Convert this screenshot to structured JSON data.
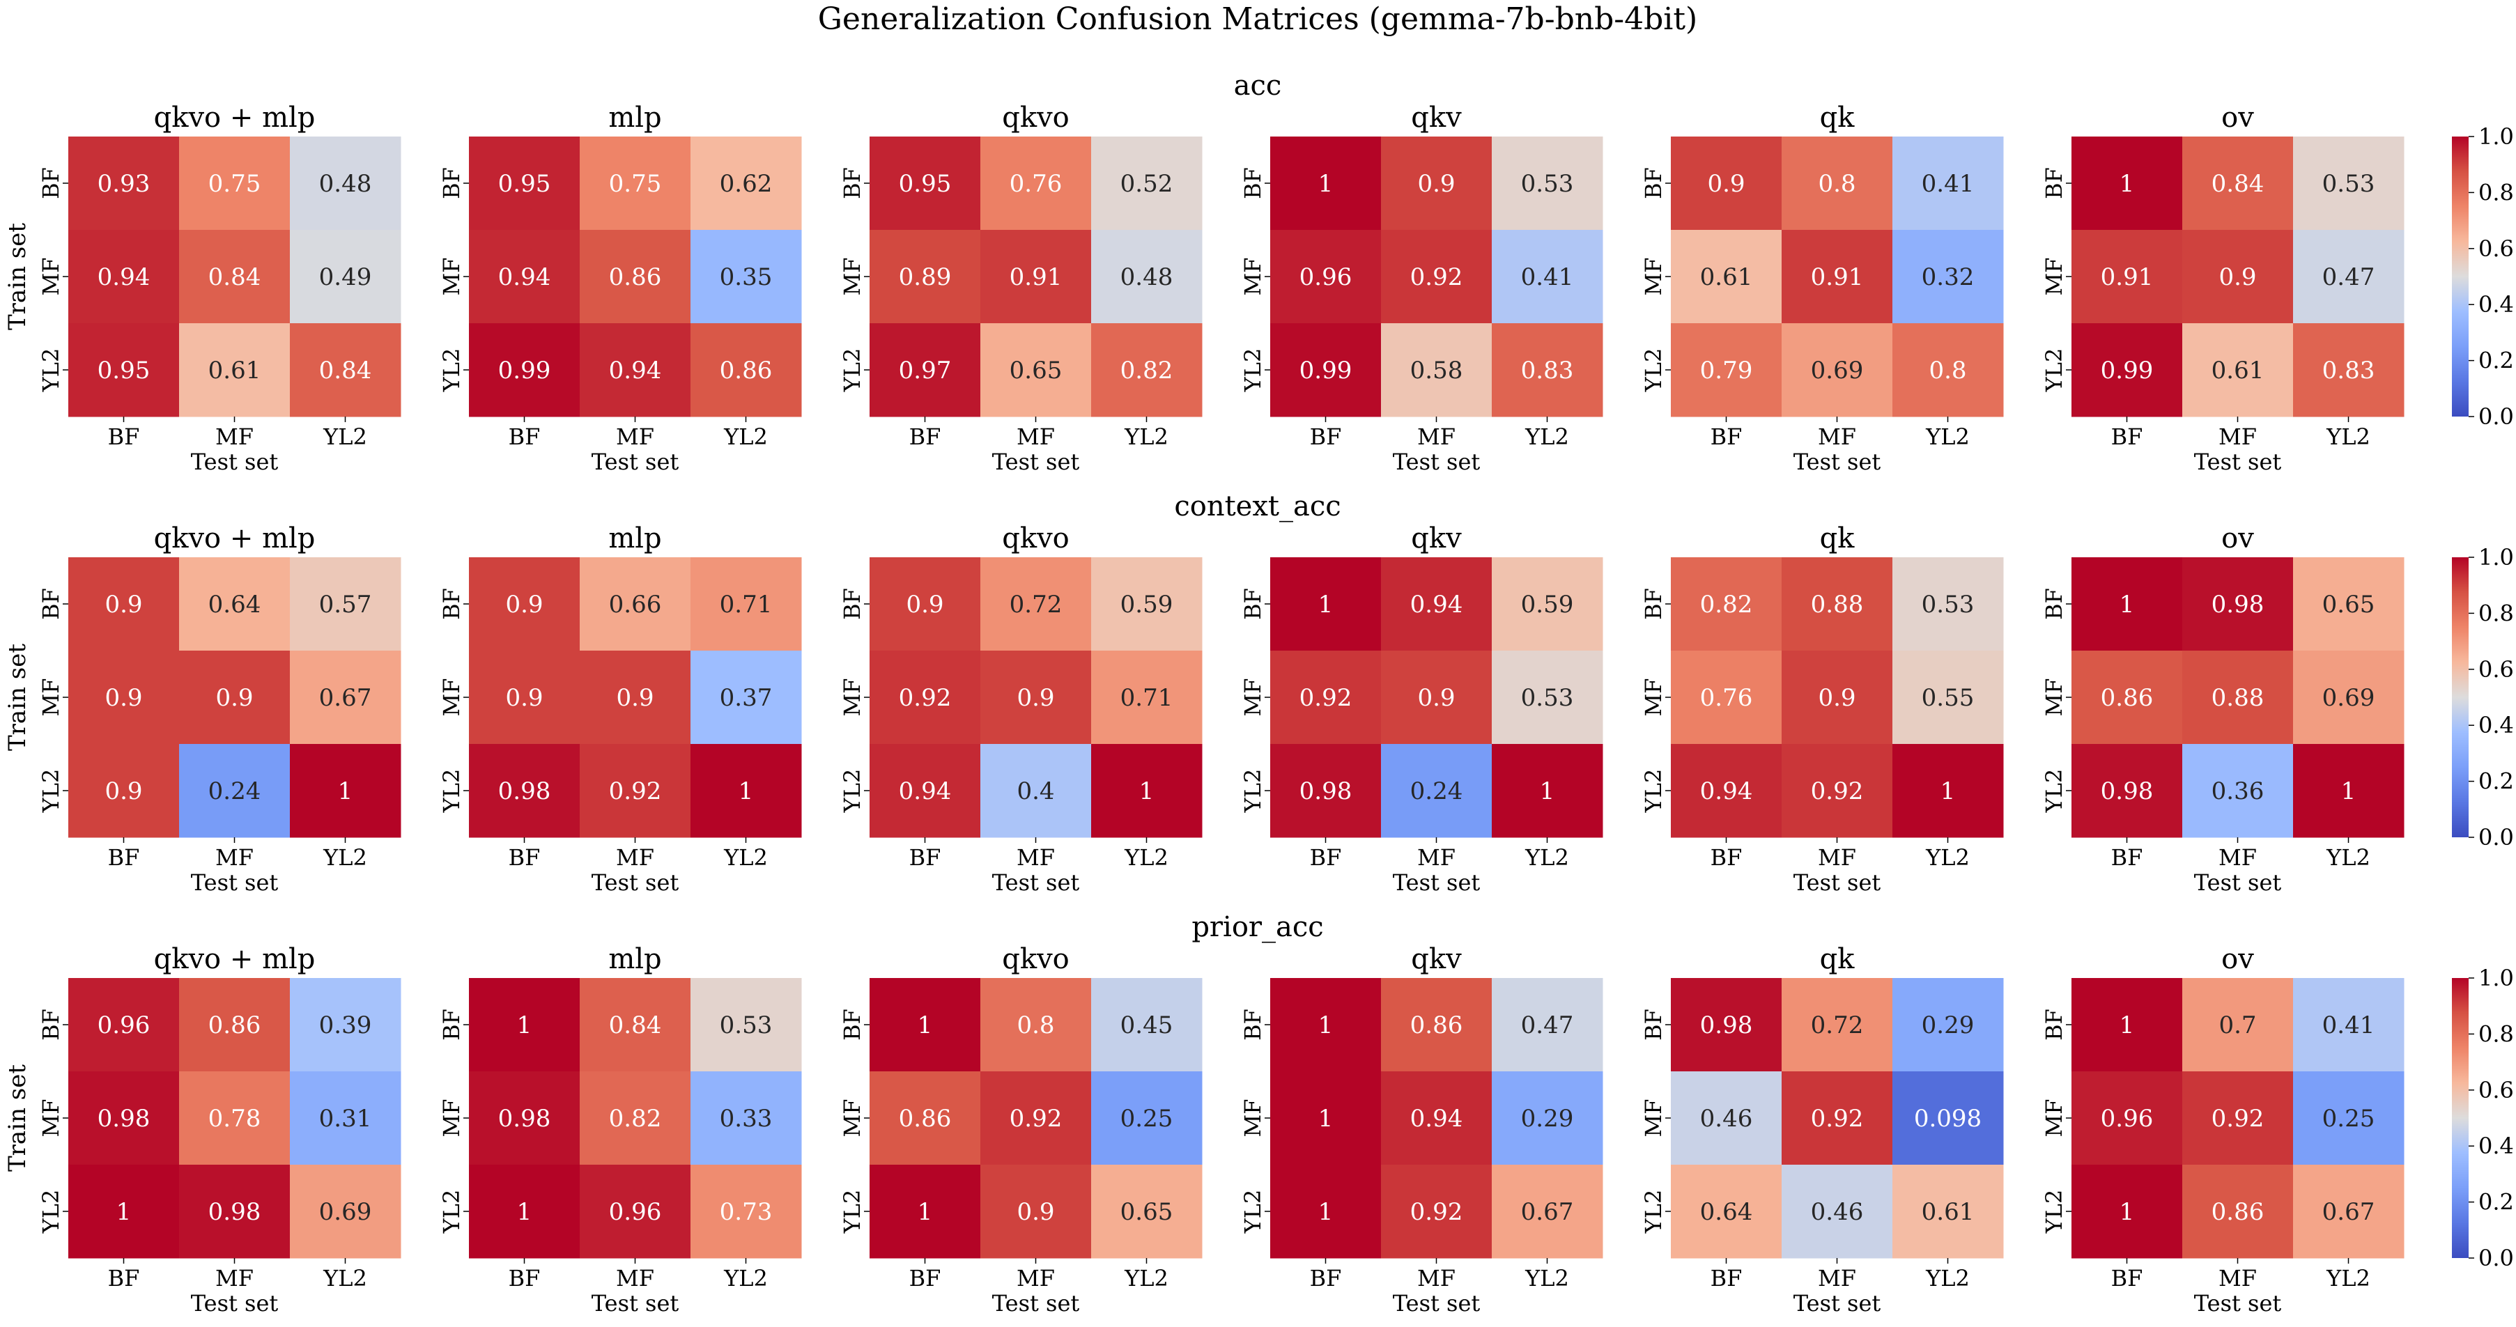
{
  "title": "Generalization Confusion Matrices (gemma-7b-bnb-4bit)",
  "colorbar_ticks": [
    "0.0",
    "0.2",
    "0.4",
    "0.6",
    "0.8",
    "1.0"
  ],
  "chart_data": {
    "type": "heatmap",
    "colormap": "coolwarm",
    "vmin": 0.0,
    "vmax": 1.0,
    "row_labels": [
      "BF",
      "MF",
      "YL2"
    ],
    "col_labels": [
      "BF",
      "MF",
      "YL2"
    ],
    "xlabel": "Test set",
    "ylabel": "Train set",
    "panels": [
      "qkvo + mlp",
      "mlp",
      "qkvo",
      "qkv",
      "qk",
      "ov"
    ],
    "metrics": [
      {
        "name": "acc",
        "matrices": [
          [
            [
              "0.93",
              "0.75",
              "0.48"
            ],
            [
              "0.94",
              "0.84",
              "0.49"
            ],
            [
              "0.95",
              "0.61",
              "0.84"
            ]
          ],
          [
            [
              "0.95",
              "0.75",
              "0.62"
            ],
            [
              "0.94",
              "0.86",
              "0.35"
            ],
            [
              "0.99",
              "0.94",
              "0.86"
            ]
          ],
          [
            [
              "0.95",
              "0.76",
              "0.52"
            ],
            [
              "0.89",
              "0.91",
              "0.48"
            ],
            [
              "0.97",
              "0.65",
              "0.82"
            ]
          ],
          [
            [
              "1",
              "0.9",
              "0.53"
            ],
            [
              "0.96",
              "0.92",
              "0.41"
            ],
            [
              "0.99",
              "0.58",
              "0.83"
            ]
          ],
          [
            [
              "0.9",
              "0.8",
              "0.41"
            ],
            [
              "0.61",
              "0.91",
              "0.32"
            ],
            [
              "0.79",
              "0.69",
              "0.8"
            ]
          ],
          [
            [
              "1",
              "0.84",
              "0.53"
            ],
            [
              "0.91",
              "0.9",
              "0.47"
            ],
            [
              "0.99",
              "0.61",
              "0.83"
            ]
          ]
        ]
      },
      {
        "name": "context_acc",
        "matrices": [
          [
            [
              "0.9",
              "0.64",
              "0.57"
            ],
            [
              "0.9",
              "0.9",
              "0.67"
            ],
            [
              "0.9",
              "0.24",
              "1"
            ]
          ],
          [
            [
              "0.9",
              "0.66",
              "0.71"
            ],
            [
              "0.9",
              "0.9",
              "0.37"
            ],
            [
              "0.98",
              "0.92",
              "1"
            ]
          ],
          [
            [
              "0.9",
              "0.72",
              "0.59"
            ],
            [
              "0.92",
              "0.9",
              "0.71"
            ],
            [
              "0.94",
              "0.4",
              "1"
            ]
          ],
          [
            [
              "1",
              "0.94",
              "0.59"
            ],
            [
              "0.92",
              "0.9",
              "0.53"
            ],
            [
              "0.98",
              "0.24",
              "1"
            ]
          ],
          [
            [
              "0.82",
              "0.88",
              "0.53"
            ],
            [
              "0.76",
              "0.9",
              "0.55"
            ],
            [
              "0.94",
              "0.92",
              "1"
            ]
          ],
          [
            [
              "1",
              "0.98",
              "0.65"
            ],
            [
              "0.86",
              "0.88",
              "0.69"
            ],
            [
              "0.98",
              "0.36",
              "1"
            ]
          ]
        ]
      },
      {
        "name": "prior_acc",
        "matrices": [
          [
            [
              "0.96",
              "0.86",
              "0.39"
            ],
            [
              "0.98",
              "0.78",
              "0.31"
            ],
            [
              "1",
              "0.98",
              "0.69"
            ]
          ],
          [
            [
              "1",
              "0.84",
              "0.53"
            ],
            [
              "0.98",
              "0.82",
              "0.33"
            ],
            [
              "1",
              "0.96",
              "0.73"
            ]
          ],
          [
            [
              "1",
              "0.8",
              "0.45"
            ],
            [
              "0.86",
              "0.92",
              "0.25"
            ],
            [
              "1",
              "0.9",
              "0.65"
            ]
          ],
          [
            [
              "1",
              "0.86",
              "0.47"
            ],
            [
              "1",
              "0.94",
              "0.29"
            ],
            [
              "1",
              "0.92",
              "0.67"
            ]
          ],
          [
            [
              "0.98",
              "0.72",
              "0.29"
            ],
            [
              "0.46",
              "0.92",
              "0.098"
            ],
            [
              "0.64",
              "0.46",
              "0.61"
            ]
          ],
          [
            [
              "1",
              "0.7",
              "0.41"
            ],
            [
              "0.96",
              "0.92",
              "0.25"
            ],
            [
              "1",
              "0.86",
              "0.67"
            ]
          ]
        ]
      }
    ]
  }
}
